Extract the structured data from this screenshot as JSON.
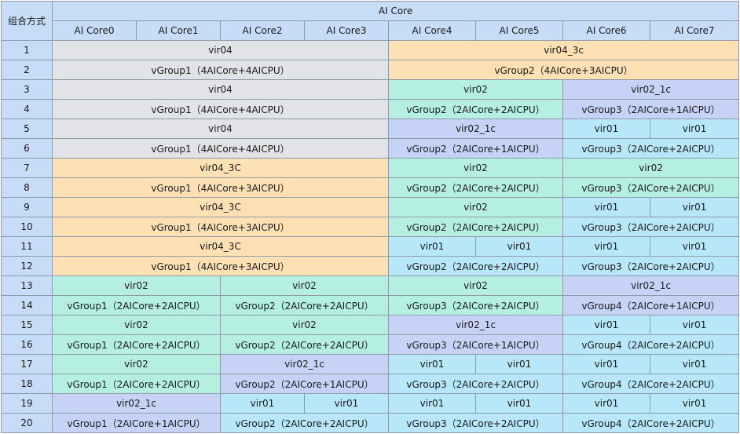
{
  "header": {
    "combo_label": "组合方式",
    "group_label": "AI Core",
    "cores": [
      "AI Core0",
      "AI Core1",
      "AI Core2",
      "AI Core3",
      "AI Core4",
      "AI Core5",
      "AI Core6",
      "AI Core7"
    ]
  },
  "colors": {
    "header": "#c6dcf7",
    "gray": "#e2e3e7",
    "orange": "#fde0b4",
    "green": "#b5efe1",
    "purple": "#c6d3f7",
    "cyan": "#b7e7f8",
    "border": "#8f9aa8"
  },
  "rows": [
    {
      "num": "1",
      "cells": [
        {
          "text": "vir04",
          "span": 4,
          "color": "gray"
        },
        {
          "text": "vir04_3c",
          "span": 4,
          "color": "orange"
        }
      ]
    },
    {
      "num": "2",
      "cells": [
        {
          "text": "vGroup1（4AICore+4AICPU）",
          "span": 4,
          "color": "gray"
        },
        {
          "text": "vGroup2（4AICore+3AICPU）",
          "span": 4,
          "color": "orange"
        }
      ]
    },
    {
      "num": "3",
      "cells": [
        {
          "text": "vir04",
          "span": 4,
          "color": "gray"
        },
        {
          "text": "vir02",
          "span": 2,
          "color": "green"
        },
        {
          "text": "vir02_1c",
          "span": 2,
          "color": "purple"
        }
      ]
    },
    {
      "num": "4",
      "cells": [
        {
          "text": "vGroup1（4AICore+4AICPU）",
          "span": 4,
          "color": "gray"
        },
        {
          "text": "vGroup2（2AICore+2AICPU）",
          "span": 2,
          "color": "green"
        },
        {
          "text": "vGroup3（2AICore+1AICPU）",
          "span": 2,
          "color": "purple"
        }
      ]
    },
    {
      "num": "5",
      "cells": [
        {
          "text": "vir04",
          "span": 4,
          "color": "gray"
        },
        {
          "text": "vir02_1c",
          "span": 2,
          "color": "purple"
        },
        {
          "text": "vir01",
          "span": 1,
          "color": "cyan"
        },
        {
          "text": "vir01",
          "span": 1,
          "color": "cyan"
        }
      ]
    },
    {
      "num": "6",
      "cells": [
        {
          "text": "vGroup1（4AICore+4AICPU）",
          "span": 4,
          "color": "gray"
        },
        {
          "text": "vGroup2（2AICore+1AICPU）",
          "span": 2,
          "color": "purple"
        },
        {
          "text": "vGroup3（2AICore+2AICPU）",
          "span": 2,
          "color": "cyan"
        }
      ]
    },
    {
      "num": "7",
      "cells": [
        {
          "text": "vir04_3C",
          "span": 4,
          "color": "orange"
        },
        {
          "text": "vir02",
          "span": 2,
          "color": "green"
        },
        {
          "text": "vir02",
          "span": 2,
          "color": "green"
        }
      ]
    },
    {
      "num": "8",
      "cells": [
        {
          "text": "vGroup1（4AICore+3AICPU）",
          "span": 4,
          "color": "orange"
        },
        {
          "text": "vGroup2（2AICore+2AICPU）",
          "span": 2,
          "color": "green"
        },
        {
          "text": "vGroup3（2AICore+2AICPU）",
          "span": 2,
          "color": "green"
        }
      ]
    },
    {
      "num": "9",
      "cells": [
        {
          "text": "vir04_3C",
          "span": 4,
          "color": "orange"
        },
        {
          "text": "vir02",
          "span": 2,
          "color": "green"
        },
        {
          "text": "vir01",
          "span": 1,
          "color": "cyan"
        },
        {
          "text": "vir01",
          "span": 1,
          "color": "cyan"
        }
      ]
    },
    {
      "num": "10",
      "cells": [
        {
          "text": "vGroup1（4AICore+3AICPU）",
          "span": 4,
          "color": "orange"
        },
        {
          "text": "vGroup2（2AICore+2AICPU）",
          "span": 2,
          "color": "green"
        },
        {
          "text": "vGroup3（2AICore+2AICPU）",
          "span": 2,
          "color": "cyan"
        }
      ]
    },
    {
      "num": "11",
      "cells": [
        {
          "text": "vir04_3C",
          "span": 4,
          "color": "orange"
        },
        {
          "text": "vir01",
          "span": 1,
          "color": "cyan"
        },
        {
          "text": "vir01",
          "span": 1,
          "color": "cyan"
        },
        {
          "text": "vir01",
          "span": 1,
          "color": "cyan"
        },
        {
          "text": "vir01",
          "span": 1,
          "color": "cyan"
        }
      ]
    },
    {
      "num": "12",
      "cells": [
        {
          "text": "vGroup1（4AICore+3AICPU）",
          "span": 4,
          "color": "orange"
        },
        {
          "text": "vGroup2（2AICore+2AICPU）",
          "span": 2,
          "color": "cyan"
        },
        {
          "text": "vGroup3（2AICore+2AICPU）",
          "span": 2,
          "color": "cyan"
        }
      ]
    },
    {
      "num": "13",
      "cells": [
        {
          "text": "vir02",
          "span": 2,
          "color": "green"
        },
        {
          "text": "vir02",
          "span": 2,
          "color": "green"
        },
        {
          "text": "vir02",
          "span": 2,
          "color": "green"
        },
        {
          "text": "vir02_1c",
          "span": 2,
          "color": "purple"
        }
      ]
    },
    {
      "num": "14",
      "cells": [
        {
          "text": "vGroup1（2AICore+2AICPU）",
          "span": 2,
          "color": "green"
        },
        {
          "text": "vGroup2（2AICore+2AICPU）",
          "span": 2,
          "color": "green"
        },
        {
          "text": "vGroup3（2AICore+2AICPU）",
          "span": 2,
          "color": "green"
        },
        {
          "text": "vGroup4（2AICore+1AICPU）",
          "span": 2,
          "color": "purple"
        }
      ]
    },
    {
      "num": "15",
      "cells": [
        {
          "text": "vir02",
          "span": 2,
          "color": "green"
        },
        {
          "text": "vir02",
          "span": 2,
          "color": "green"
        },
        {
          "text": "vir02_1c",
          "span": 2,
          "color": "purple"
        },
        {
          "text": "vir01",
          "span": 1,
          "color": "cyan"
        },
        {
          "text": "vir01",
          "span": 1,
          "color": "cyan"
        }
      ]
    },
    {
      "num": "16",
      "cells": [
        {
          "text": "vGroup1（2AICore+2AICPU）",
          "span": 2,
          "color": "green"
        },
        {
          "text": "vGroup2（2AICore+2AICPU）",
          "span": 2,
          "color": "green"
        },
        {
          "text": "vGroup3（2AICore+1AICPU）",
          "span": 2,
          "color": "purple"
        },
        {
          "text": "vGroup4（2AICore+2AICPU）",
          "span": 2,
          "color": "cyan"
        }
      ]
    },
    {
      "num": "17",
      "cells": [
        {
          "text": "vir02",
          "span": 2,
          "color": "green"
        },
        {
          "text": "vir02_1c",
          "span": 2,
          "color": "purple"
        },
        {
          "text": "vir01",
          "span": 1,
          "color": "cyan"
        },
        {
          "text": "vir01",
          "span": 1,
          "color": "cyan"
        },
        {
          "text": "vir01",
          "span": 1,
          "color": "cyan"
        },
        {
          "text": "vir01",
          "span": 1,
          "color": "cyan"
        }
      ]
    },
    {
      "num": "18",
      "cells": [
        {
          "text": "vGroup1（2AICore+2AICPU）",
          "span": 2,
          "color": "green"
        },
        {
          "text": "vGroup2（2AICore+1AICPU）",
          "span": 2,
          "color": "purple"
        },
        {
          "text": "vGroup3（2AICore+2AICPU）",
          "span": 2,
          "color": "cyan"
        },
        {
          "text": "vGroup4（2AICore+2AICPU）",
          "span": 2,
          "color": "cyan"
        }
      ]
    },
    {
      "num": "19",
      "cells": [
        {
          "text": "vir02_1c",
          "span": 2,
          "color": "purple"
        },
        {
          "text": "vir01",
          "span": 1,
          "color": "cyan"
        },
        {
          "text": "vir01",
          "span": 1,
          "color": "cyan"
        },
        {
          "text": "vir01",
          "span": 1,
          "color": "cyan"
        },
        {
          "text": "vir01",
          "span": 1,
          "color": "cyan"
        },
        {
          "text": "vir01",
          "span": 1,
          "color": "cyan"
        },
        {
          "text": "vir01",
          "span": 1,
          "color": "cyan"
        }
      ]
    },
    {
      "num": "20",
      "cells": [
        {
          "text": "vGroup1（2AICore+1AICPU）",
          "span": 2,
          "color": "purple"
        },
        {
          "text": "vGroup2（2AICore+2AICPU）",
          "span": 2,
          "color": "cyan"
        },
        {
          "text": "vGroup3（2AICore+2AICPU）",
          "span": 2,
          "color": "cyan"
        },
        {
          "text": "vGroup4（2AICore+2AICPU）",
          "span": 2,
          "color": "cyan"
        }
      ]
    }
  ]
}
